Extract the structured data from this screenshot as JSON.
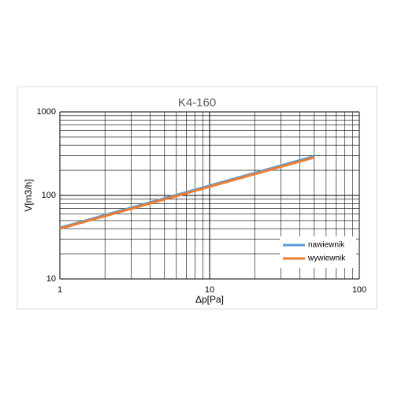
{
  "chart_data": {
    "type": "line",
    "title": "K4-160",
    "x_label": "Δp[Pa]",
    "y_label": "V[m3/h]",
    "x": [
      1,
      50
    ],
    "series": [
      {
        "name": "nawiewnik",
        "color": "#5b9bd5",
        "values": [
          41,
          295
        ]
      },
      {
        "name": "wywiewnik",
        "color": "#ed7d31",
        "values": [
          40,
          285
        ]
      }
    ],
    "xlim": [
      1,
      100
    ],
    "ylim": [
      10,
      1000
    ],
    "xticks": [
      1,
      10,
      100
    ],
    "yticks": [
      10,
      100,
      1000
    ],
    "log_x": true,
    "log_y": true,
    "grid": true,
    "minor_grid": true,
    "legend": "lower right"
  }
}
